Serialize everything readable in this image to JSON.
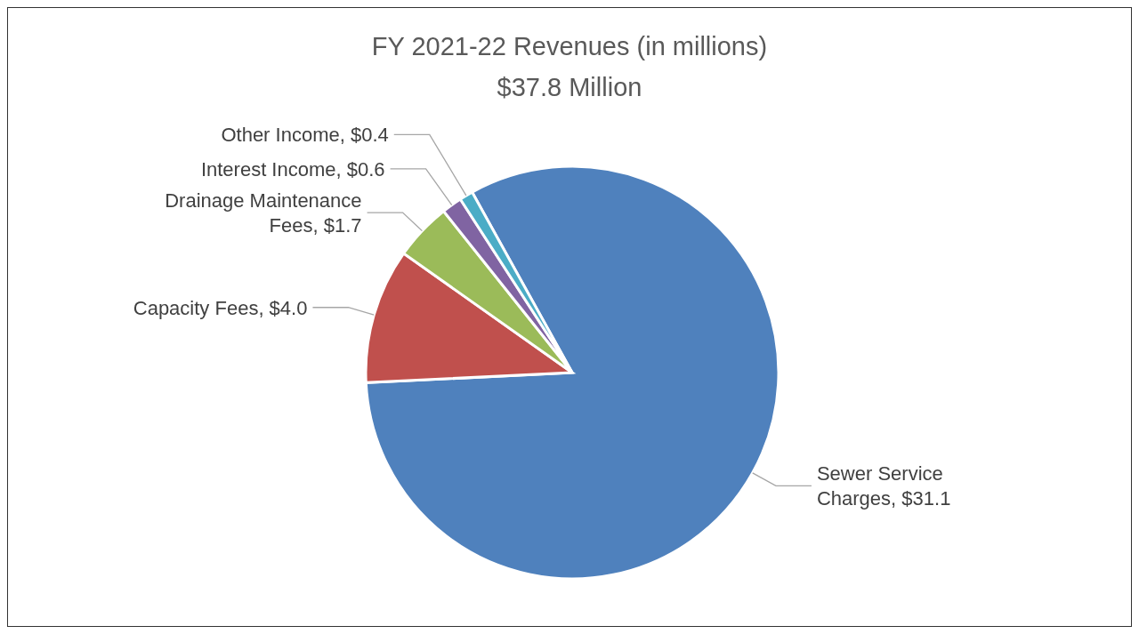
{
  "chart_data": {
    "type": "pie",
    "title": "FY 2021-22 Revenues (in millions)",
    "subtitle": "$37.8 Million",
    "categories": [
      "Sewer Service Charges",
      "Capacity Fees",
      "Drainage Maintenance Fees",
      "Interest Income",
      "Other Income"
    ],
    "values": [
      31.1,
      4.0,
      1.7,
      0.6,
      0.4
    ],
    "value_labels": [
      "$31.1",
      "$4.0",
      "$1.7",
      "$0.6",
      "$0.4"
    ],
    "colors": [
      "#4f81bd",
      "#c0504d",
      "#9bbb59",
      "#8064a2",
      "#4bacc6"
    ]
  }
}
